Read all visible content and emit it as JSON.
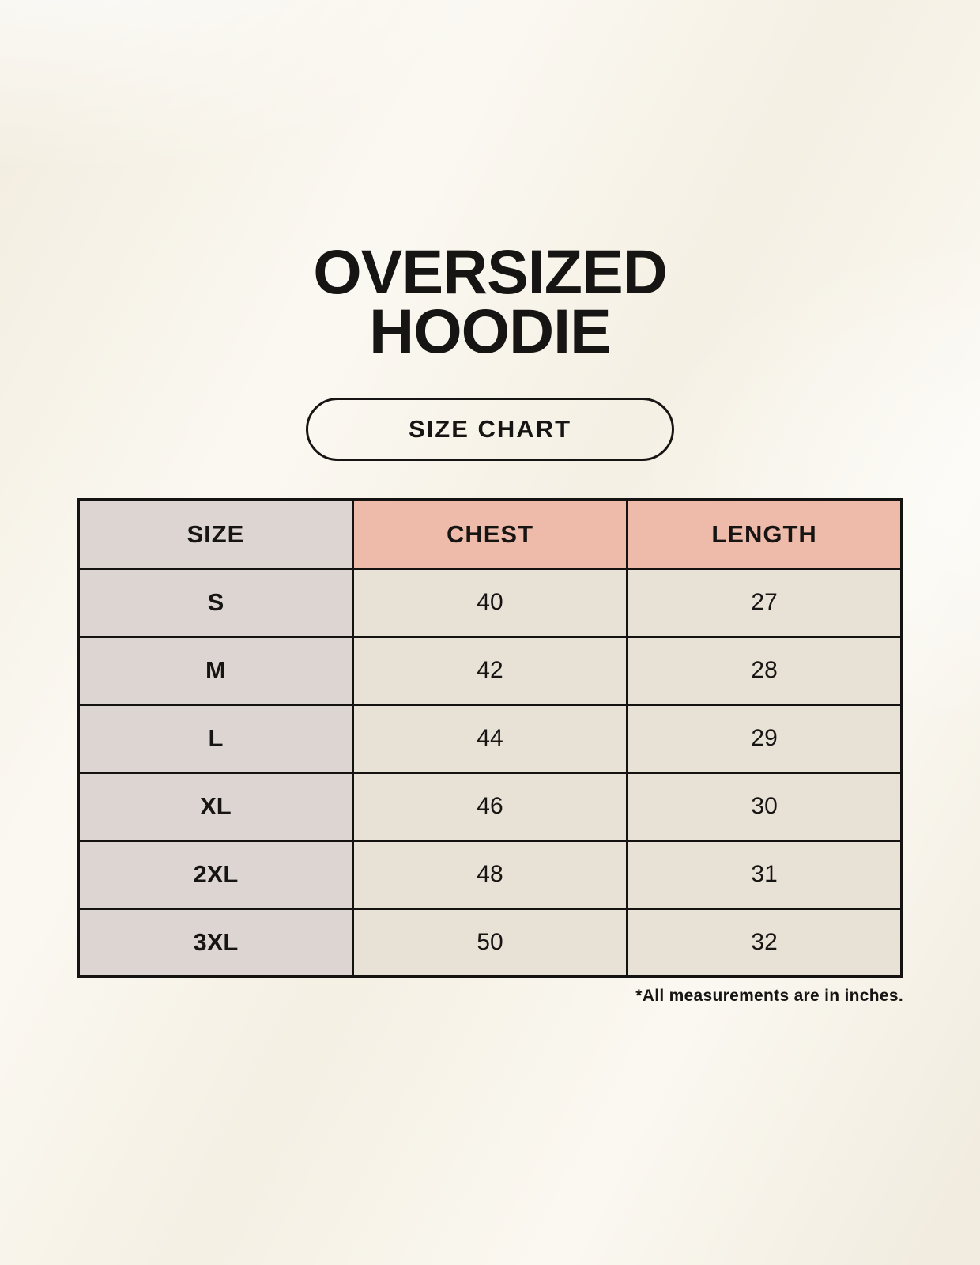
{
  "page": {
    "title_line1": "OVERSIZED",
    "title_line2": "HOODIE",
    "badge": "SIZE CHART",
    "note": "*All measurements are in inches."
  },
  "colors": {
    "background": "#F8F4E9",
    "text": "#171513",
    "size_column_bg": "#DCD5D1",
    "header_accent_bg": "#EEBBAB",
    "cell_bg": "#E8E1D6",
    "border": "#151311"
  },
  "chart_data": {
    "type": "table",
    "title": "OVERSIZED HOODIE",
    "subtitle": "SIZE CHART",
    "columns": [
      "SIZE",
      "CHEST",
      "LENGTH"
    ],
    "rows": [
      [
        "S",
        "40",
        "27"
      ],
      [
        "M",
        "42",
        "28"
      ],
      [
        "L",
        "44",
        "29"
      ],
      [
        "XL",
        "46",
        "30"
      ],
      [
        "2XL",
        "48",
        "31"
      ],
      [
        "3XL",
        "50",
        "32"
      ]
    ],
    "note": "*All measurements are in inches.",
    "units": "inches",
    "layout": "header row shaded; first column gray, measurement headers salmon, value cells beige; black grid borders"
  }
}
